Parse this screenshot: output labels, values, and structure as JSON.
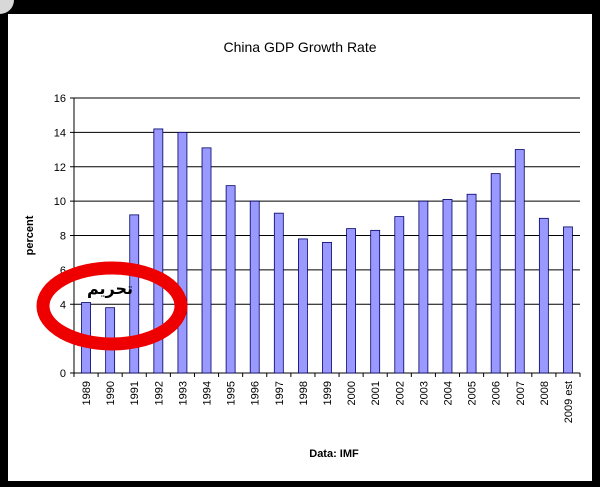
{
  "chart_data": {
    "type": "bar",
    "title": "China GDP Growth Rate",
    "ylabel": "percent",
    "xlabel": "Data: IMF",
    "categories": [
      "1989",
      "1990",
      "1991",
      "1992",
      "1993",
      "1994",
      "1995",
      "1996",
      "1997",
      "1998",
      "1999",
      "2000",
      "2001",
      "2002",
      "2003",
      "2004",
      "2005",
      "2006",
      "2007",
      "2008",
      "2009 est"
    ],
    "values": [
      4.1,
      3.8,
      9.2,
      14.2,
      14.0,
      13.1,
      10.9,
      10.0,
      9.3,
      7.8,
      7.6,
      8.4,
      8.3,
      9.1,
      10.0,
      10.1,
      10.4,
      11.6,
      13.0,
      9.0,
      8.5
    ],
    "ylim": [
      0,
      16
    ],
    "yticks": [
      0,
      4,
      6,
      8,
      10,
      12,
      14,
      16
    ],
    "grid": true,
    "bar_color": "#9999ff",
    "bar_edge_color": "#000066"
  },
  "overlay": {
    "annotation_text": "تحريم",
    "circle_color": "#ee0000"
  }
}
